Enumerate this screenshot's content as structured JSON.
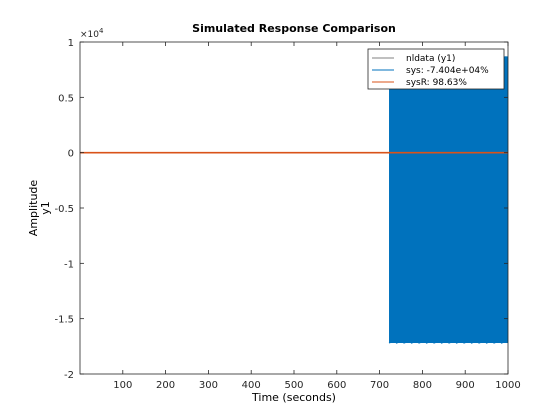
{
  "chart_data": {
    "type": "line",
    "title": "Simulated Response Comparison",
    "xlabel": "Time (seconds)",
    "ylabel": "Amplitude",
    "ylabel2": "y1",
    "xlim": [
      0,
      1000
    ],
    "ylim": [
      -2,
      1
    ],
    "y_exponent_label": "×10",
    "y_exponent_power": "4",
    "xticks": [
      100,
      200,
      300,
      400,
      500,
      600,
      700,
      800,
      900,
      1000
    ],
    "xtick_labels": [
      "100",
      "200",
      "300",
      "400",
      "500",
      "600",
      "700",
      "800",
      "900",
      "1000"
    ],
    "yticks": [
      -2,
      -1.5,
      -1,
      -0.5,
      0,
      0.5,
      1
    ],
    "ytick_labels": [
      "-2",
      "-1.5",
      "-1",
      "-0.5",
      "0",
      "0.5",
      "1"
    ],
    "grid": false,
    "legend_position": "top-right",
    "series": [
      {
        "name": "nldata (y1)",
        "color": "#808080",
        "points": [
          [
            0,
            0
          ],
          [
            1000,
            0
          ]
        ]
      },
      {
        "name": "sys: -7.404e+04%",
        "color": "#0072bd",
        "points": [
          [
            0,
            0
          ],
          [
            720,
            0
          ]
        ],
        "band": {
          "x_start": 722,
          "x_end": 1000,
          "y_upper": 0.87,
          "y_lower": -1.72
        }
      },
      {
        "name": "sysR: 98.63%",
        "color": "#d95319",
        "points": [
          [
            0,
            0
          ],
          [
            1000,
            0
          ]
        ]
      }
    ]
  }
}
